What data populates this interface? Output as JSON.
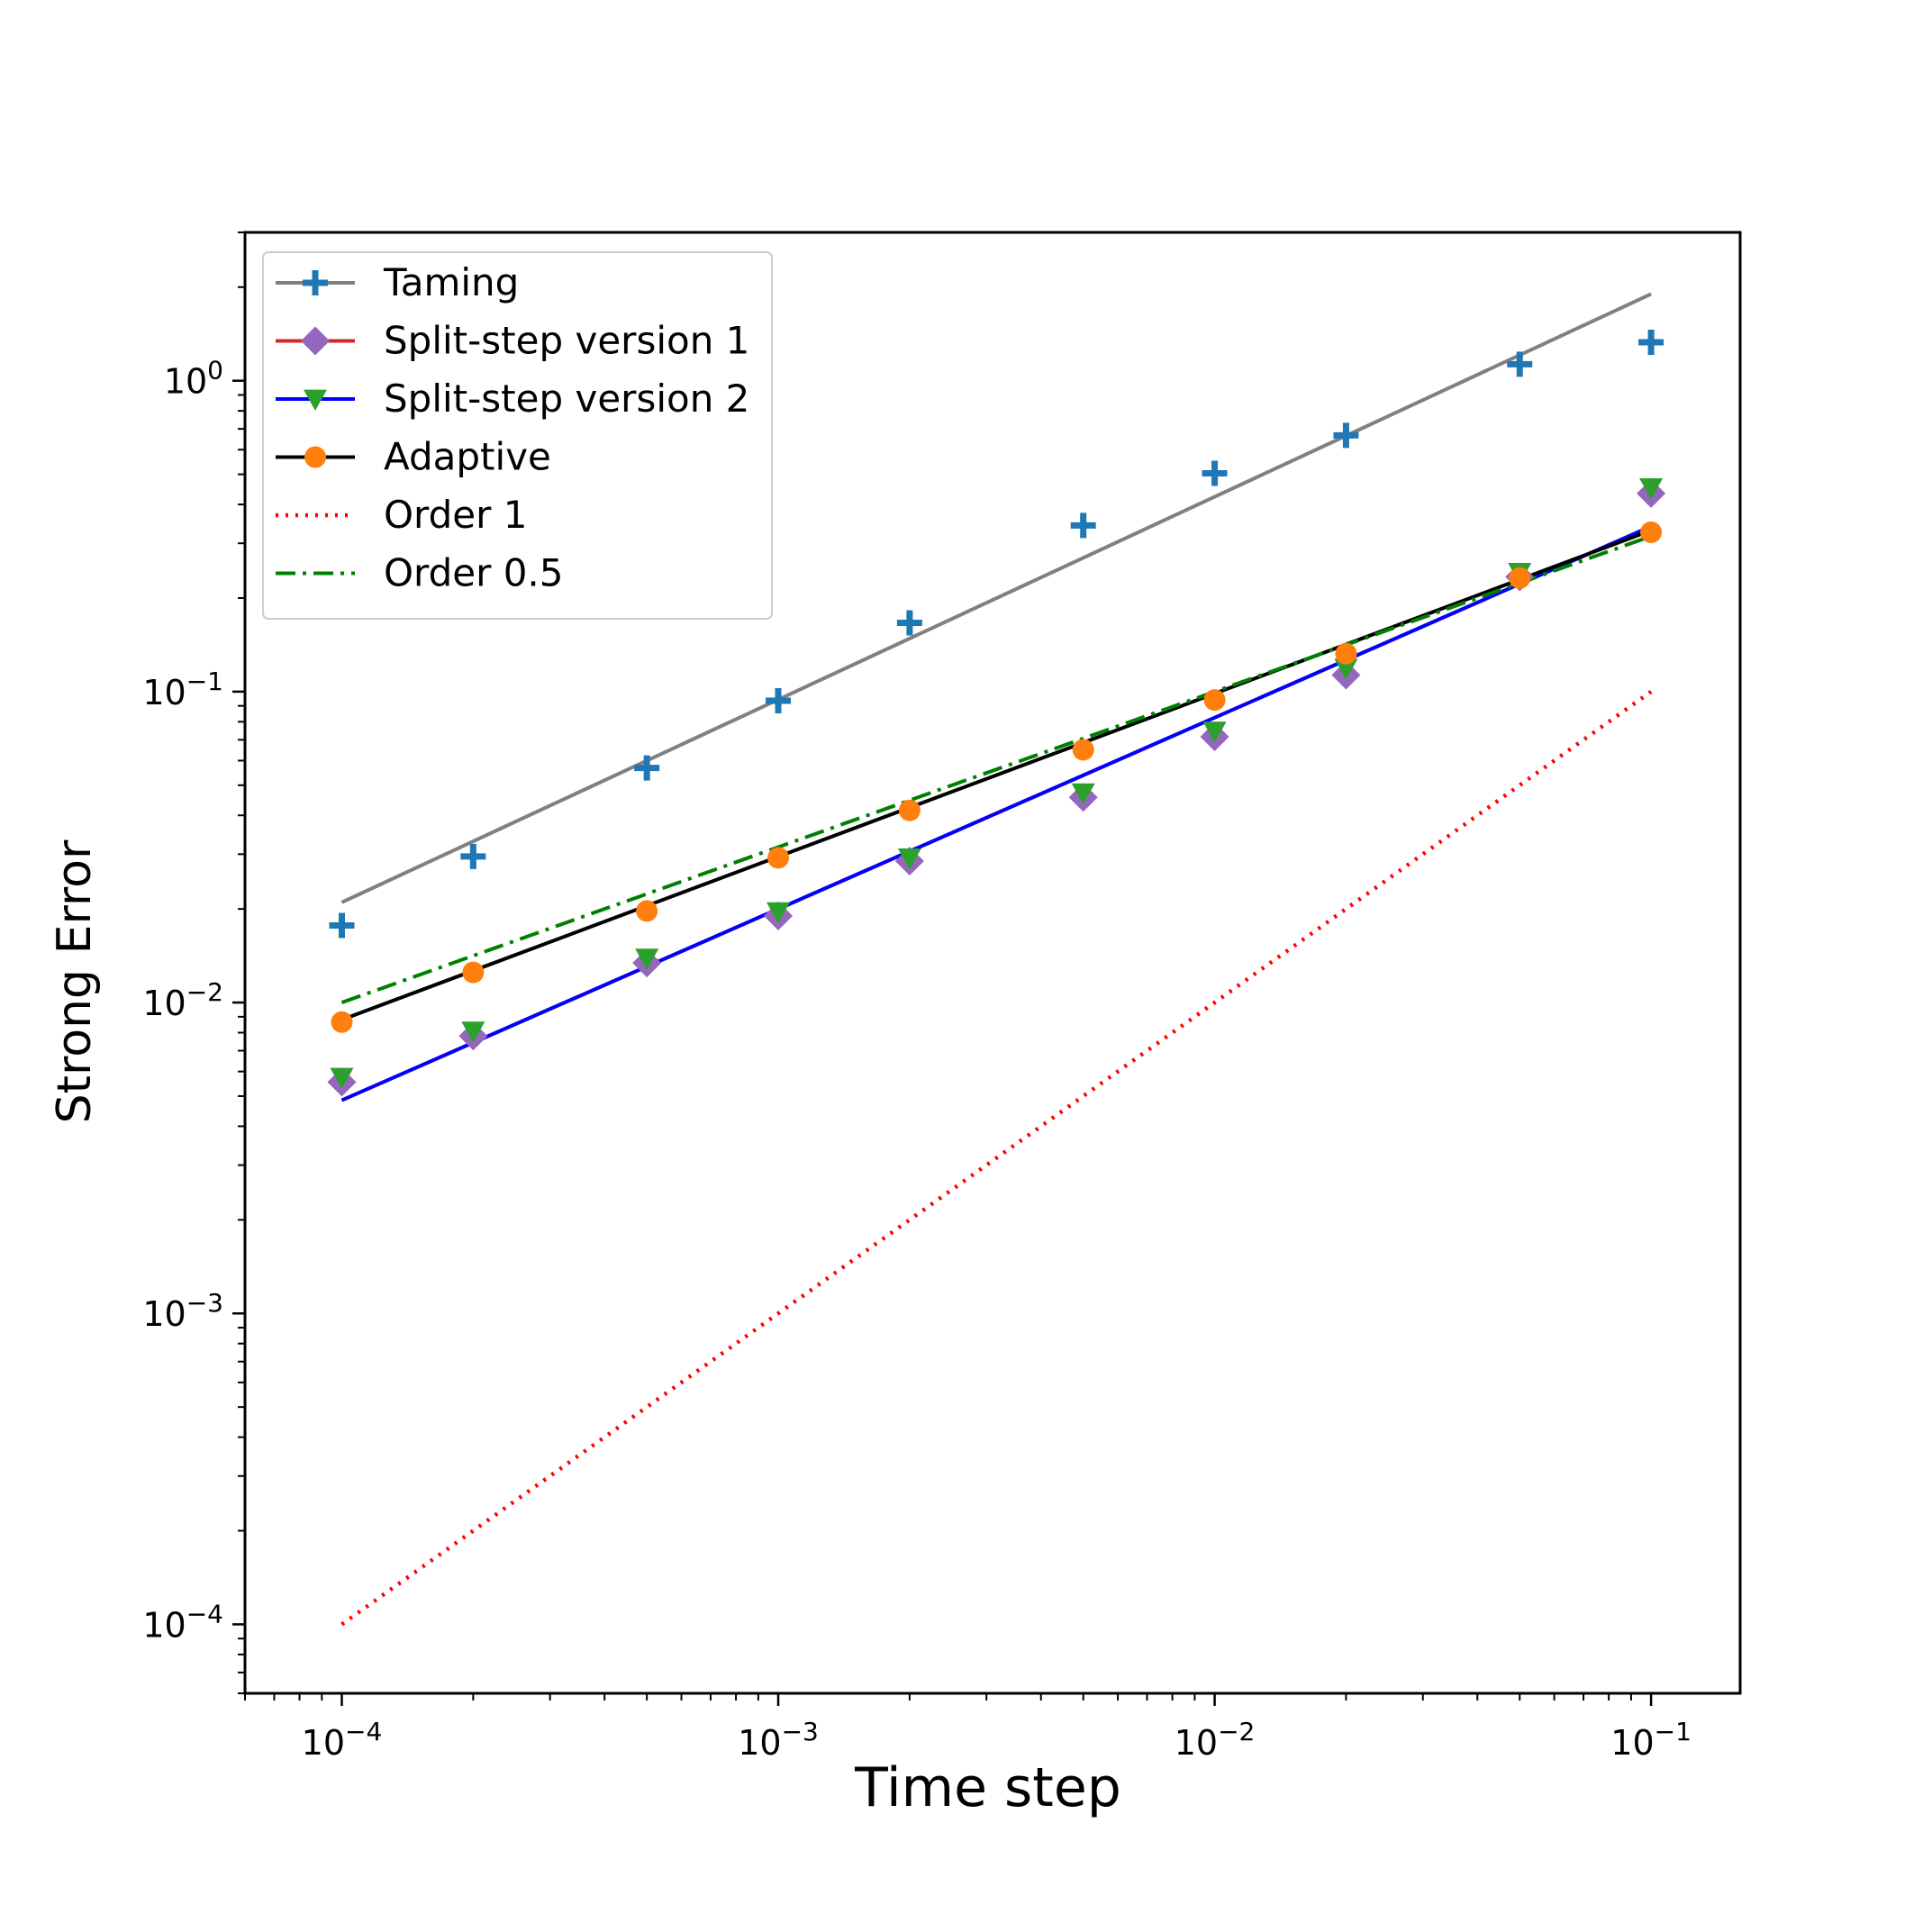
{
  "chart_data": {
    "type": "line",
    "xlabel": "Time step",
    "ylabel": "Strong Error",
    "xscale": "log",
    "yscale": "log",
    "xlim": [
      6e-05,
      0.16
    ],
    "ylim": [
      6e-05,
      3.0
    ],
    "grid": false,
    "legend_position": "top-left",
    "x_ticks": [
      {
        "value": 0.0001,
        "base": "10",
        "exp": "−4"
      },
      {
        "value": 0.001,
        "base": "10",
        "exp": "−3"
      },
      {
        "value": 0.01,
        "base": "10",
        "exp": "−2"
      },
      {
        "value": 0.1,
        "base": "10",
        "exp": "−1"
      }
    ],
    "y_ticks": [
      {
        "value": 0.0001,
        "base": "10",
        "exp": "−4"
      },
      {
        "value": 0.001,
        "base": "10",
        "exp": "−3"
      },
      {
        "value": 0.01,
        "base": "10",
        "exp": "−2"
      },
      {
        "value": 0.1,
        "base": "10",
        "exp": "−1"
      },
      {
        "value": 1,
        "base": "10",
        "exp": "0"
      }
    ],
    "x": [
      0.0001,
      0.0002,
      0.0005,
      0.001,
      0.002,
      0.005,
      0.01,
      0.02,
      0.05,
      0.1
    ],
    "series": [
      {
        "name": "Taming",
        "marker": "plus",
        "marker_color": "#1f77b4",
        "line_color": "#808080",
        "line_style": "solid",
        "values": [
          0.0177,
          0.0295,
          0.0568,
          0.0935,
          0.1665,
          0.3425,
          0.5035,
          0.667,
          1.13,
          1.33
        ],
        "fit": [
          0.021,
          1.9
        ]
      },
      {
        "name": "Split-step version 1",
        "marker": "diamond",
        "marker_color": "#9467bd",
        "line_color": "#d62728",
        "line_style": "solid",
        "values": [
          0.00555,
          0.0078,
          0.0134,
          0.019,
          0.0285,
          0.0457,
          0.0716,
          0.113,
          0.234,
          0.434
        ],
        "fit": [
          0.00485,
          0.34
        ]
      },
      {
        "name": "Split-step version 2",
        "marker": "triangle-down",
        "marker_color": "#2ca02c",
        "line_color": "#0000ff",
        "line_style": "solid",
        "values": [
          0.00575,
          0.0081,
          0.0139,
          0.0196,
          0.0292,
          0.0473,
          0.0747,
          0.119,
          0.242,
          0.453
        ],
        "fit": [
          0.00485,
          0.34
        ]
      },
      {
        "name": "Adaptive",
        "marker": "circle",
        "marker_color": "#ff7f0e",
        "line_color": "#000000",
        "line_style": "solid",
        "values": [
          0.00865,
          0.0125,
          0.0197,
          0.0292,
          0.0415,
          0.065,
          0.094,
          0.1325,
          0.232,
          0.3255
        ],
        "fit": [
          0.0088,
          0.33
        ]
      },
      {
        "name": "Order 1",
        "marker": "none",
        "line_color": "#ff0000",
        "line_style": "dotted",
        "values": [
          0.0001,
          0.1
        ],
        "x": [
          0.0001,
          0.1
        ]
      },
      {
        "name": "Order 0.5",
        "marker": "none",
        "line_color": "#008000",
        "line_style": "dashdot",
        "values": [
          0.01,
          0.316
        ],
        "x": [
          0.0001,
          0.1
        ]
      }
    ]
  }
}
